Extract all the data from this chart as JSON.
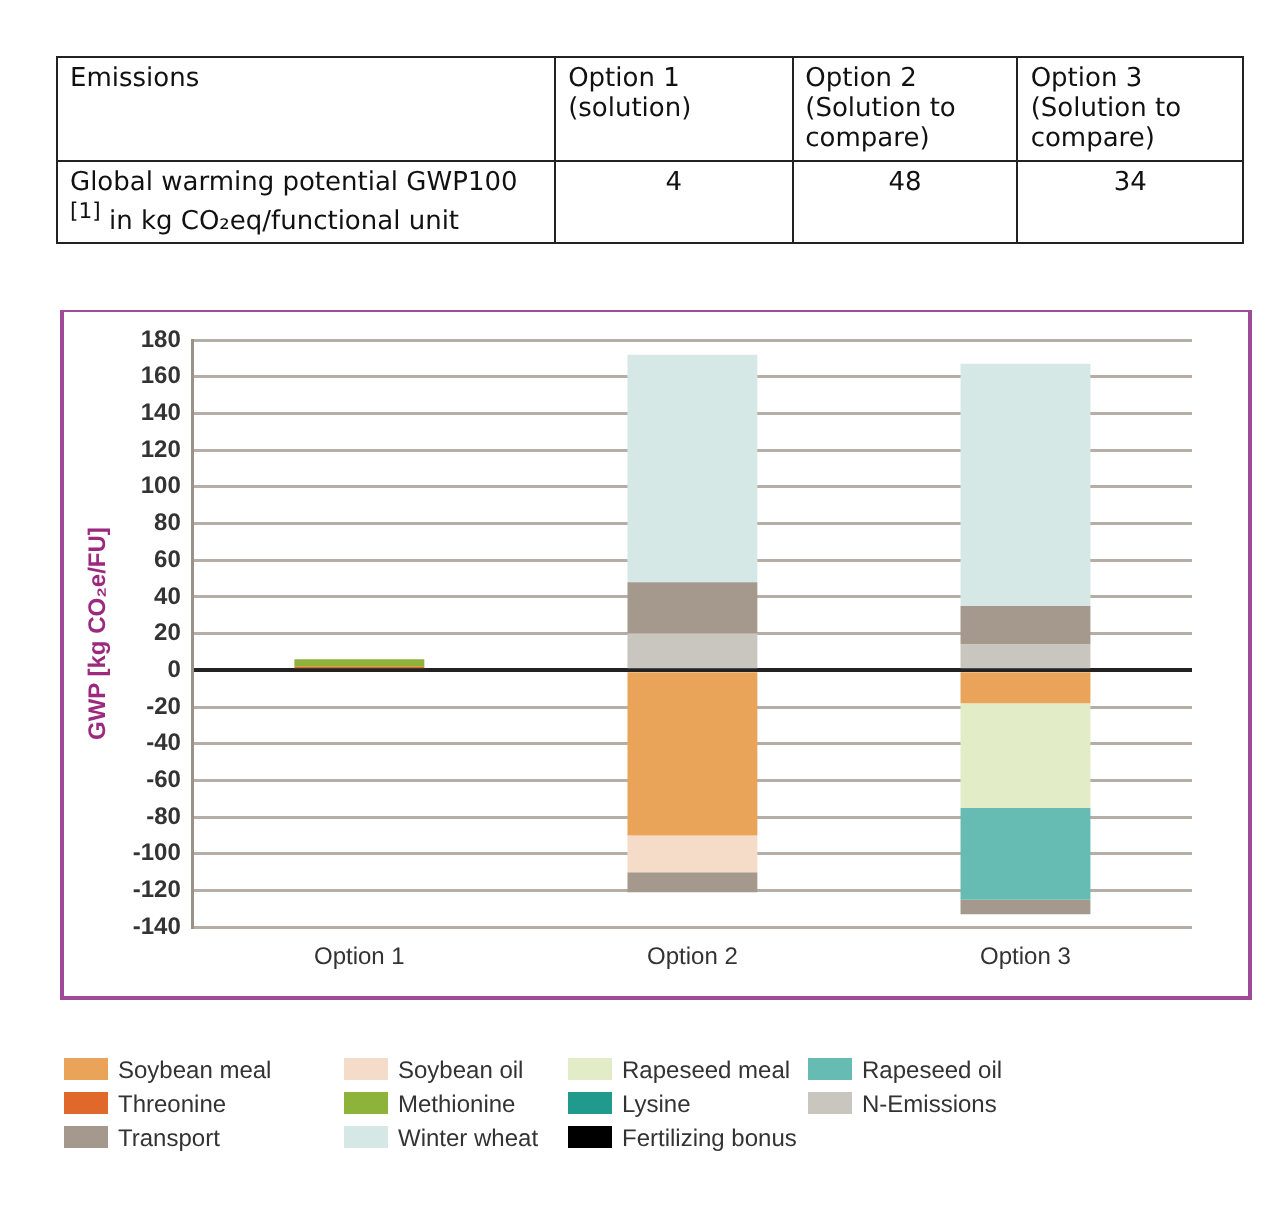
{
  "chart_data": [
    {
      "type": "other",
      "annotations": [
        "Emissions",
        "Option 1 (solution)",
        "Option 2 (Solution to compare)",
        "Option 3 (Solution to compare)",
        "Global warming potential GWP100 $^{[1]}$ in kg CO₂eq/functional unit",
        "4",
        "48",
        "34"
      ]
    },
    {
      "type": "bar",
      "stacked": true,
      "ylabel": "GWP [kg CO₂e/FU]",
      "categories": [
        "Option 1",
        "Option 2",
        "Option 3"
      ],
      "ylim": [
        -140,
        180
      ],
      "yticks": [
        -140,
        -120,
        -100,
        -80,
        -60,
        -40,
        -20,
        0,
        20,
        40,
        60,
        80,
        100,
        120,
        140,
        160,
        180
      ],
      "grid": "y",
      "legend": "bottom",
      "series": [
        {
          "name": "Soybean meal",
          "color": "#e9a45a",
          "values": [
            null,
            -90,
            -18
          ]
        },
        {
          "name": "Soybean oil",
          "color": "#f5dcc8",
          "values": [
            null,
            -20,
            null
          ]
        },
        {
          "name": "Rapeseed meal",
          "color": "#e2ecc6",
          "values": [
            null,
            null,
            -57
          ]
        },
        {
          "name": "Rapeseed oil",
          "color": "#66bbb2",
          "values": [
            null,
            null,
            -50
          ]
        },
        {
          "name": "Threonine",
          "color": "#e0682a",
          "values": [
            2,
            null,
            null
          ]
        },
        {
          "name": "Methionine",
          "color": "#8db33a",
          "values": [
            4,
            null,
            null
          ]
        },
        {
          "name": "Lysine",
          "color": "#1f9a8c",
          "values": [
            null,
            null,
            null
          ]
        },
        {
          "name": "N-Emissions",
          "color": "#c9c5bf",
          "values": [
            null,
            20,
            14
          ]
        },
        {
          "name": "Transport",
          "color": "#a4998c",
          "values": [
            null,
            28,
            21
          ]
        },
        {
          "name": "Winter wheat",
          "color": "#d5e8e5",
          "values": [
            null,
            124,
            132
          ]
        },
        {
          "name": "Fertilizing bonus",
          "color": "#000000",
          "values": [
            null,
            null,
            null
          ]
        },
        {
          "color": "#a4998c",
          "values": [
            null,
            -11,
            -8
          ]
        }
      ]
    }
  ]
}
